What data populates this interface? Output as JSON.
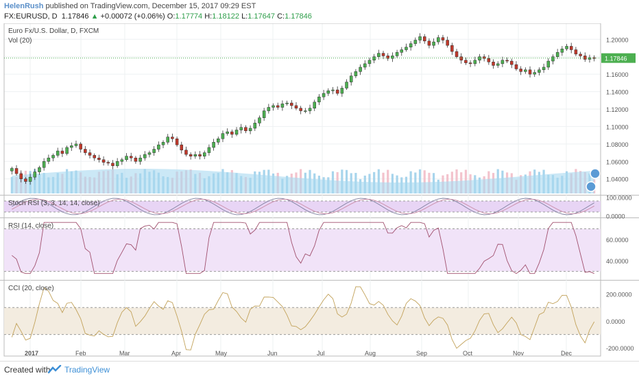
{
  "header": {
    "author": "HelenRush",
    "published": "published on TradingView.com, December 15, 2017 09:29 EST",
    "symbol": "FX:EURUSD, D",
    "last": "1.17846",
    "change_arrow": "▲",
    "change": "+0.00072 (+0.06%)",
    "o_label": "O:",
    "o_value": "1.17774",
    "h_label": "H:",
    "h_value": "1.18122",
    "l_label": "L:",
    "l_value": "1.17647",
    "c_label": "C:",
    "c_value": "1.17846"
  },
  "footer": {
    "created_label": "Created with",
    "brand": "TradingView"
  },
  "colors": {
    "up": "#4caf50",
    "down": "#c0392b",
    "volume_area": "#a8d8f0",
    "stoch_fill": "#e8d5f5",
    "rsi_fill": "#f1e3f8",
    "cci_fill": "#f3ece0",
    "price_label_bg": "#4caf50",
    "badge": "#5b9bd5"
  },
  "chart_data": [
    {
      "type": "candlestick",
      "title": "Euro Fx/U.S. Dollar, D, FXCM",
      "subtitle": "Vol (20)",
      "x_months": [
        "2017",
        "Feb",
        "Mar",
        "Apr",
        "May",
        "Jun",
        "Jul",
        "Aug",
        "Sep",
        "Oct",
        "Nov",
        "Dec"
      ],
      "y_ticks": [
        "1.20000",
        "1.18000",
        "1.16000",
        "1.14000",
        "1.12000",
        "1.10000",
        "1.08000",
        "1.06000",
        "1.04000"
      ],
      "ylim": [
        1.028,
        1.212
      ],
      "last_price_label": "1.17846",
      "closes": [
        1.052,
        1.046,
        1.04,
        1.037,
        1.042,
        1.048,
        1.053,
        1.06,
        1.064,
        1.067,
        1.072,
        1.069,
        1.076,
        1.078,
        1.08,
        1.074,
        1.07,
        1.067,
        1.064,
        1.062,
        1.059,
        1.058,
        1.055,
        1.06,
        1.062,
        1.066,
        1.064,
        1.06,
        1.064,
        1.068,
        1.07,
        1.074,
        1.079,
        1.082,
        1.088,
        1.086,
        1.079,
        1.073,
        1.068,
        1.066,
        1.068,
        1.066,
        1.07,
        1.076,
        1.082,
        1.086,
        1.092,
        1.094,
        1.091,
        1.096,
        1.099,
        1.095,
        1.098,
        1.104,
        1.11,
        1.118,
        1.122,
        1.124,
        1.122,
        1.126,
        1.127,
        1.124,
        1.121,
        1.118,
        1.118,
        1.121,
        1.128,
        1.134,
        1.138,
        1.141,
        1.142,
        1.138,
        1.144,
        1.151,
        1.158,
        1.163,
        1.168,
        1.172,
        1.176,
        1.18,
        1.184,
        1.181,
        1.178,
        1.181,
        1.185,
        1.188,
        1.191,
        1.195,
        1.199,
        1.203,
        1.198,
        1.193,
        1.197,
        1.202,
        1.199,
        1.193,
        1.186,
        1.18,
        1.176,
        1.173,
        1.172,
        1.176,
        1.18,
        1.178,
        1.174,
        1.17,
        1.172,
        1.176,
        1.175,
        1.171,
        1.166,
        1.163,
        1.165,
        1.16,
        1.162,
        1.165,
        1.168,
        1.175,
        1.18,
        1.185,
        1.189,
        1.192,
        1.188,
        1.183,
        1.181,
        1.177,
        1.179,
        1.178
      ]
    },
    {
      "type": "line",
      "title": "Stoch RSI (3, 3, 14, 14, close)",
      "y_ticks": [
        "100.0000",
        "0.0000"
      ],
      "ylim": [
        -10,
        110
      ]
    },
    {
      "type": "line",
      "title": "RSI (14, close)",
      "y_ticks": [
        "60.0000",
        "40.0000"
      ],
      "ylim": [
        22,
        80
      ]
    },
    {
      "type": "line",
      "title": "CCI (20, close)",
      "y_ticks": [
        "200.0000",
        "0.0000",
        "-200.0000"
      ],
      "ylim": [
        -260,
        300
      ]
    }
  ]
}
